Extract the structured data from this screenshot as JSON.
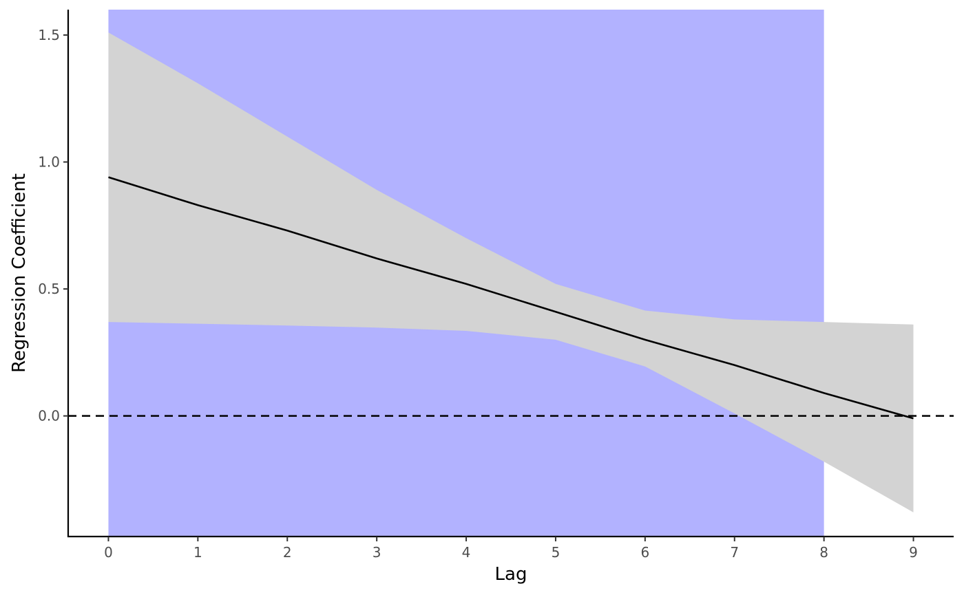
{
  "chart_data": {
    "type": "line",
    "xlabel": "Lag",
    "ylabel": "Regression Coefficient",
    "xlim": [
      -0.45,
      9.45
    ],
    "ylim": [
      -0.475,
      1.6
    ],
    "x_ticks": [
      0,
      1,
      2,
      3,
      4,
      5,
      6,
      7,
      8,
      9
    ],
    "x_tick_labels": [
      "0",
      "1",
      "2",
      "3",
      "4",
      "5",
      "6",
      "7",
      "8",
      "9"
    ],
    "y_ticks": [
      0.0,
      0.5,
      1.0,
      1.5
    ],
    "y_tick_labels": [
      "0.0",
      "0.5",
      "1.0",
      "1.5"
    ],
    "grid": false,
    "legend": "none",
    "highlight_region": {
      "x_start": 0,
      "x_end": 8,
      "color": "#b2b2ff"
    },
    "reference_line": {
      "y": 0,
      "style": "dashed",
      "color": "#000000"
    },
    "ribbon_color": "#d3d3d3",
    "line_color": "#000000",
    "x": [
      0,
      1,
      2,
      3,
      4,
      5,
      6,
      7,
      8,
      9
    ],
    "series": [
      {
        "values": [
          0.94,
          0.83,
          0.73,
          0.62,
          0.52,
          0.41,
          0.3,
          0.2,
          0.09,
          -0.01
        ]
      }
    ],
    "ribbon": {
      "lower": [
        0.37,
        0.363,
        0.356,
        0.348,
        0.335,
        0.3,
        0.195,
        0.01,
        -0.18,
        -0.38
      ],
      "upper": [
        1.51,
        1.31,
        1.1,
        0.89,
        0.7,
        0.52,
        0.415,
        0.38,
        0.37,
        0.36
      ]
    }
  }
}
